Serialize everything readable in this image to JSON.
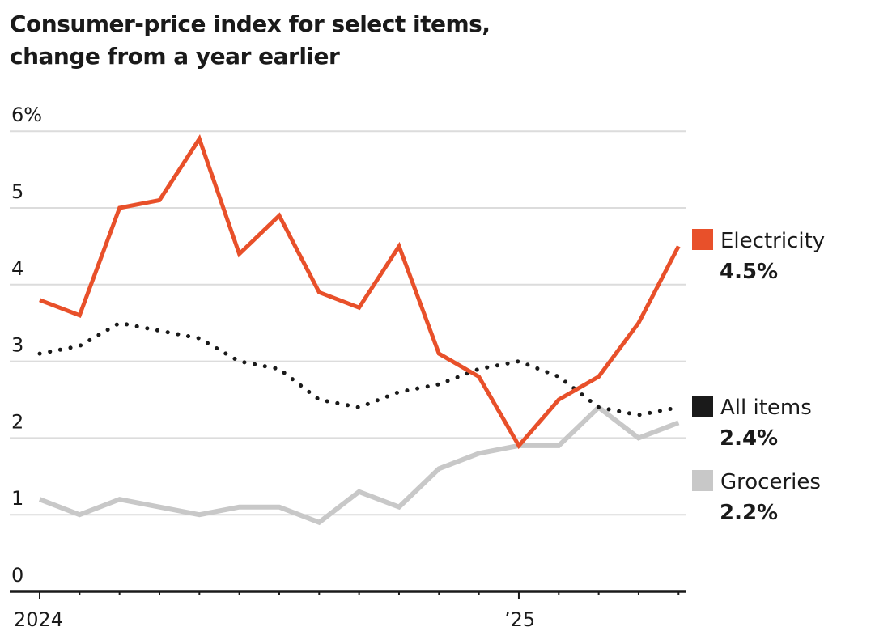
{
  "chart_data": {
    "type": "line",
    "title_line1": "Consumer-price index for select items,",
    "title_line2": "change from a year earlier",
    "xlabel": "",
    "ylabel": "",
    "ylim": [
      0,
      6
    ],
    "y_ticks": [
      {
        "value": 0,
        "label": "0"
      },
      {
        "value": 1,
        "label": "1"
      },
      {
        "value": 2,
        "label": "2"
      },
      {
        "value": 3,
        "label": "3"
      },
      {
        "value": 4,
        "label": "4"
      },
      {
        "value": 5,
        "label": "5"
      },
      {
        "value": 6,
        "label": "6%"
      }
    ],
    "grid": true,
    "x": [
      "2024-01",
      "2024-02",
      "2024-03",
      "2024-04",
      "2024-05",
      "2024-06",
      "2024-07",
      "2024-08",
      "2024-09",
      "2024-10",
      "2024-11",
      "2024-12",
      "2025-01",
      "2025-02",
      "2025-03",
      "2025-04",
      "2025-05"
    ],
    "x_major_labels": [
      {
        "index": 0,
        "label": "2024"
      },
      {
        "index": 12,
        "label": "’25"
      }
    ],
    "series": [
      {
        "name": "Electricity",
        "style": "solid",
        "color": "#e8502a",
        "latest_label": "4.5%",
        "values": [
          3.8,
          3.6,
          5.0,
          5.1,
          5.9,
          4.4,
          4.9,
          3.9,
          3.7,
          4.5,
          3.1,
          2.8,
          1.9,
          2.5,
          2.8,
          3.5,
          4.5
        ]
      },
      {
        "name": "All items",
        "style": "dotted",
        "color": "#1a1a1a",
        "latest_label": "2.4%",
        "values": [
          3.1,
          3.2,
          3.5,
          3.4,
          3.3,
          3.0,
          2.9,
          2.5,
          2.4,
          2.6,
          2.7,
          2.9,
          3.0,
          2.8,
          2.4,
          2.3,
          2.4
        ]
      },
      {
        "name": "Groceries",
        "style": "solid",
        "color": "#c8c8c8",
        "latest_label": "2.2%",
        "values": [
          1.2,
          1.0,
          1.2,
          1.1,
          1.0,
          1.1,
          1.1,
          0.9,
          1.3,
          1.1,
          1.6,
          1.8,
          1.9,
          1.9,
          2.4,
          2.0,
          2.2
        ]
      }
    ],
    "legend_placement": "right",
    "colors": {
      "gridline": "#dcdcdc",
      "axis": "#1a1a1a"
    }
  }
}
